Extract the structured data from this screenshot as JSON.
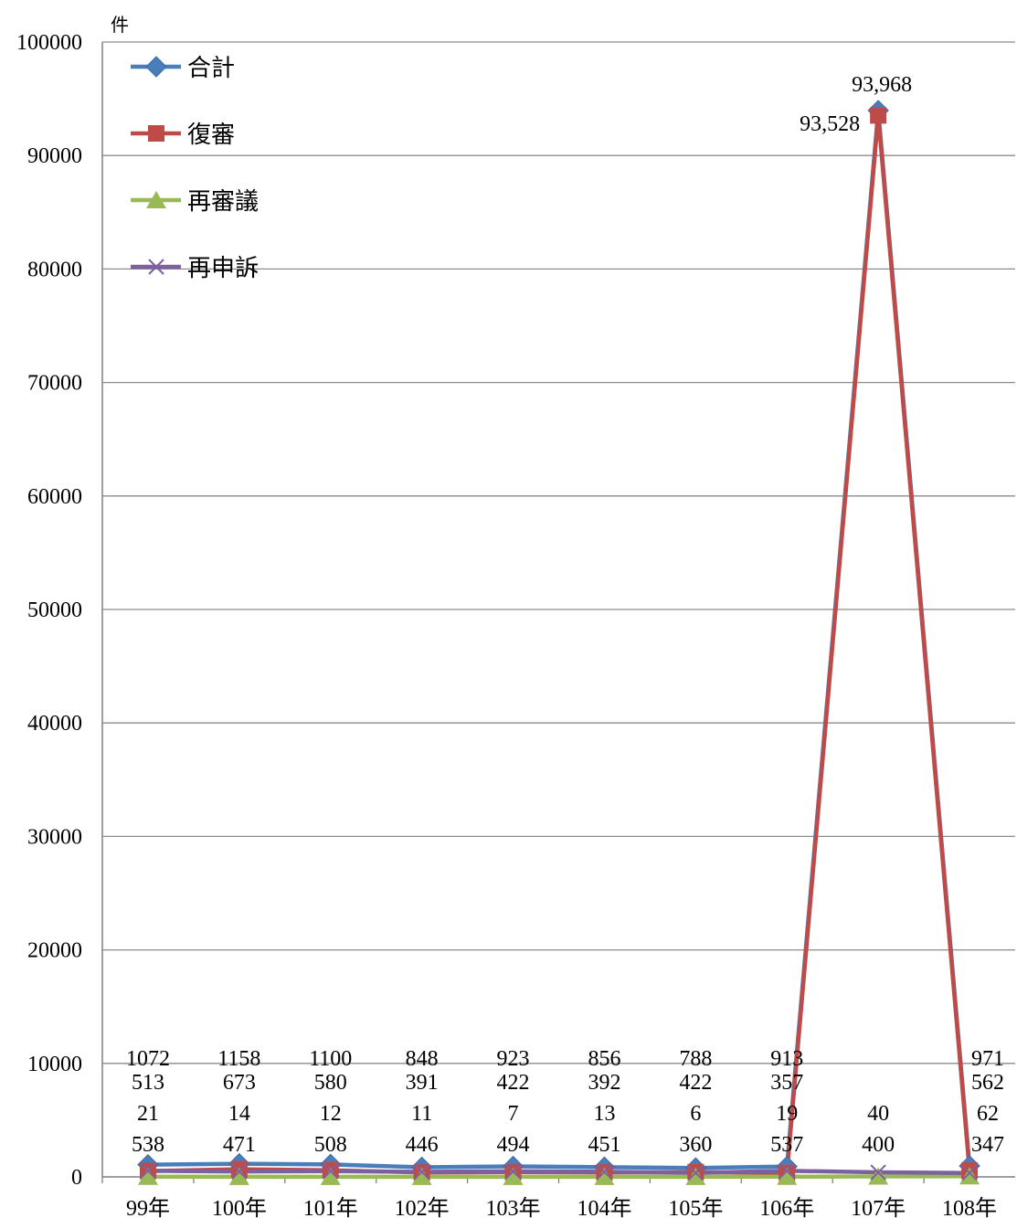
{
  "chart_data": {
    "type": "line",
    "ylabel": "件",
    "categories": [
      "99年",
      "100年",
      "101年",
      "102年",
      "103年",
      "104年",
      "105年",
      "106年",
      "107年",
      "108年"
    ],
    "ylim": [
      0,
      100000
    ],
    "yticks": [
      "0",
      "10000",
      "20000",
      "30000",
      "40000",
      "50000",
      "60000",
      "70000",
      "80000",
      "90000",
      "100000"
    ],
    "grid": true,
    "legend_position": "top-left",
    "series": [
      {
        "name": "合計",
        "color": "#4a7ebb",
        "marker": "diamond",
        "values": [
          1072,
          1158,
          1100,
          848,
          923,
          856,
          788,
          913,
          93968,
          971
        ],
        "labels": [
          "1072",
          "1158",
          "1100",
          "848",
          "923",
          "856",
          "788",
          "913",
          "93,968",
          "971"
        ]
      },
      {
        "name": "復審",
        "color": "#be4b48",
        "marker": "square",
        "values": [
          513,
          673,
          580,
          391,
          422,
          392,
          422,
          357,
          93528,
          562
        ],
        "labels": [
          "513",
          "673",
          "580",
          "391",
          "422",
          "392",
          "422",
          "357",
          "93,528",
          "562"
        ]
      },
      {
        "name": "再審議",
        "color": "#98b954",
        "marker": "triangle",
        "values": [
          21,
          14,
          12,
          11,
          7,
          13,
          6,
          19,
          40,
          62
        ],
        "labels": [
          "21",
          "14",
          "12",
          "11",
          "7",
          "13",
          "6",
          "19",
          "40",
          "62"
        ]
      },
      {
        "name": "再申訴",
        "color": "#7d60a0",
        "marker": "x",
        "values": [
          538,
          471,
          508,
          446,
          494,
          451,
          360,
          537,
          400,
          347
        ],
        "labels": [
          "538",
          "471",
          "508",
          "446",
          "494",
          "451",
          "360",
          "537",
          "400",
          "347"
        ]
      }
    ]
  }
}
